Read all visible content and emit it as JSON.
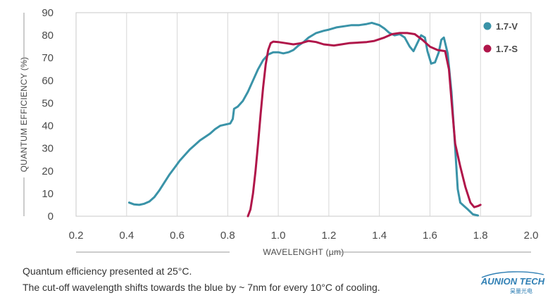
{
  "chart_data": {
    "type": "line",
    "xlabel": "WAVELENGHT (µm)",
    "ylabel": "QUANTUM EFFICIENCY (%)",
    "xlim": [
      0.2,
      2.0
    ],
    "ylim": [
      0,
      90
    ],
    "x_ticks": [
      "0.2",
      "0.4",
      "0.6",
      "0.8",
      "1.0",
      "1.2",
      "1.4",
      "1.6",
      "1.8",
      "2.0"
    ],
    "y_ticks": [
      "0",
      "10",
      "20",
      "30",
      "40",
      "50",
      "60",
      "70",
      "80",
      "90"
    ],
    "grid": "vertical",
    "legend_position": "top-right",
    "series": [
      {
        "name": "1.7-V",
        "color": "#3a93a8",
        "points": [
          [
            0.41,
            6.0
          ],
          [
            0.43,
            5.2
          ],
          [
            0.45,
            5.0
          ],
          [
            0.47,
            5.5
          ],
          [
            0.49,
            6.5
          ],
          [
            0.51,
            8.5
          ],
          [
            0.53,
            11.5
          ],
          [
            0.55,
            15.0
          ],
          [
            0.57,
            18.5
          ],
          [
            0.59,
            21.5
          ],
          [
            0.61,
            24.5
          ],
          [
            0.63,
            27.0
          ],
          [
            0.65,
            29.5
          ],
          [
            0.67,
            31.5
          ],
          [
            0.69,
            33.5
          ],
          [
            0.71,
            35.0
          ],
          [
            0.73,
            36.5
          ],
          [
            0.75,
            38.5
          ],
          [
            0.77,
            40.0
          ],
          [
            0.79,
            40.5
          ],
          [
            0.81,
            41.0
          ],
          [
            0.82,
            43.0
          ],
          [
            0.825,
            47.5
          ],
          [
            0.84,
            48.5
          ],
          [
            0.86,
            51.0
          ],
          [
            0.88,
            55.0
          ],
          [
            0.9,
            60.0
          ],
          [
            0.92,
            65.0
          ],
          [
            0.94,
            69.0
          ],
          [
            0.96,
            71.5
          ],
          [
            0.98,
            72.5
          ],
          [
            1.0,
            72.5
          ],
          [
            1.02,
            72.0
          ],
          [
            1.04,
            72.5
          ],
          [
            1.06,
            73.5
          ],
          [
            1.08,
            75.5
          ],
          [
            1.1,
            77.0
          ],
          [
            1.12,
            79.0
          ],
          [
            1.15,
            81.0
          ],
          [
            1.18,
            82.0
          ],
          [
            1.2,
            82.5
          ],
          [
            1.23,
            83.5
          ],
          [
            1.26,
            84.0
          ],
          [
            1.29,
            84.5
          ],
          [
            1.32,
            84.5
          ],
          [
            1.35,
            85.0
          ],
          [
            1.37,
            85.5
          ],
          [
            1.4,
            84.5
          ],
          [
            1.42,
            83.0
          ],
          [
            1.44,
            81.0
          ],
          [
            1.46,
            80.0
          ],
          [
            1.48,
            80.5
          ],
          [
            1.5,
            79.0
          ],
          [
            1.52,
            75.0
          ],
          [
            1.535,
            73.0
          ],
          [
            1.55,
            76.5
          ],
          [
            1.565,
            80.0
          ],
          [
            1.58,
            79.0
          ],
          [
            1.59,
            73.0
          ],
          [
            1.605,
            67.5
          ],
          [
            1.62,
            68.0
          ],
          [
            1.635,
            72.5
          ],
          [
            1.645,
            78.0
          ],
          [
            1.655,
            79.0
          ],
          [
            1.67,
            72.0
          ],
          [
            1.685,
            55.0
          ],
          [
            1.7,
            30.0
          ],
          [
            1.71,
            12.0
          ],
          [
            1.72,
            6.0
          ],
          [
            1.735,
            4.5
          ],
          [
            1.75,
            3.0
          ],
          [
            1.77,
            0.8
          ],
          [
            1.79,
            0.3
          ]
        ]
      },
      {
        "name": "1.7-S",
        "color": "#b0164a",
        "points": [
          [
            0.88,
            0.0
          ],
          [
            0.89,
            3.0
          ],
          [
            0.9,
            10.0
          ],
          [
            0.91,
            20.0
          ],
          [
            0.92,
            32.0
          ],
          [
            0.93,
            45.0
          ],
          [
            0.94,
            57.0
          ],
          [
            0.95,
            67.0
          ],
          [
            0.96,
            73.5
          ],
          [
            0.97,
            76.5
          ],
          [
            0.98,
            77.2
          ],
          [
            1.0,
            77.0
          ],
          [
            1.03,
            76.5
          ],
          [
            1.06,
            76.0
          ],
          [
            1.09,
            76.5
          ],
          [
            1.12,
            77.5
          ],
          [
            1.15,
            77.0
          ],
          [
            1.18,
            76.0
          ],
          [
            1.22,
            75.5
          ],
          [
            1.25,
            76.0
          ],
          [
            1.28,
            76.5
          ],
          [
            1.32,
            76.8
          ],
          [
            1.35,
            77.0
          ],
          [
            1.38,
            77.5
          ],
          [
            1.42,
            79.0
          ],
          [
            1.45,
            80.5
          ],
          [
            1.48,
            81.0
          ],
          [
            1.51,
            81.0
          ],
          [
            1.54,
            80.5
          ],
          [
            1.57,
            78.0
          ],
          [
            1.6,
            75.0
          ],
          [
            1.63,
            73.5
          ],
          [
            1.66,
            73.0
          ],
          [
            1.675,
            65.0
          ],
          [
            1.69,
            45.0
          ],
          [
            1.7,
            32.0
          ],
          [
            1.72,
            22.0
          ],
          [
            1.74,
            13.0
          ],
          [
            1.76,
            6.0
          ],
          [
            1.775,
            4.0
          ],
          [
            1.79,
            4.5
          ],
          [
            1.8,
            5.0
          ]
        ]
      }
    ]
  },
  "captions": {
    "line1": "Quantum efficiency presented at 25°C.",
    "line2": "The cut-off wavelength shifts towards the blue by ~ 7nm for every 10°C of cooling."
  },
  "logo": {
    "text": "AUNION TECH",
    "subtext": "昊量光电",
    "color": "#2f7fb4"
  }
}
